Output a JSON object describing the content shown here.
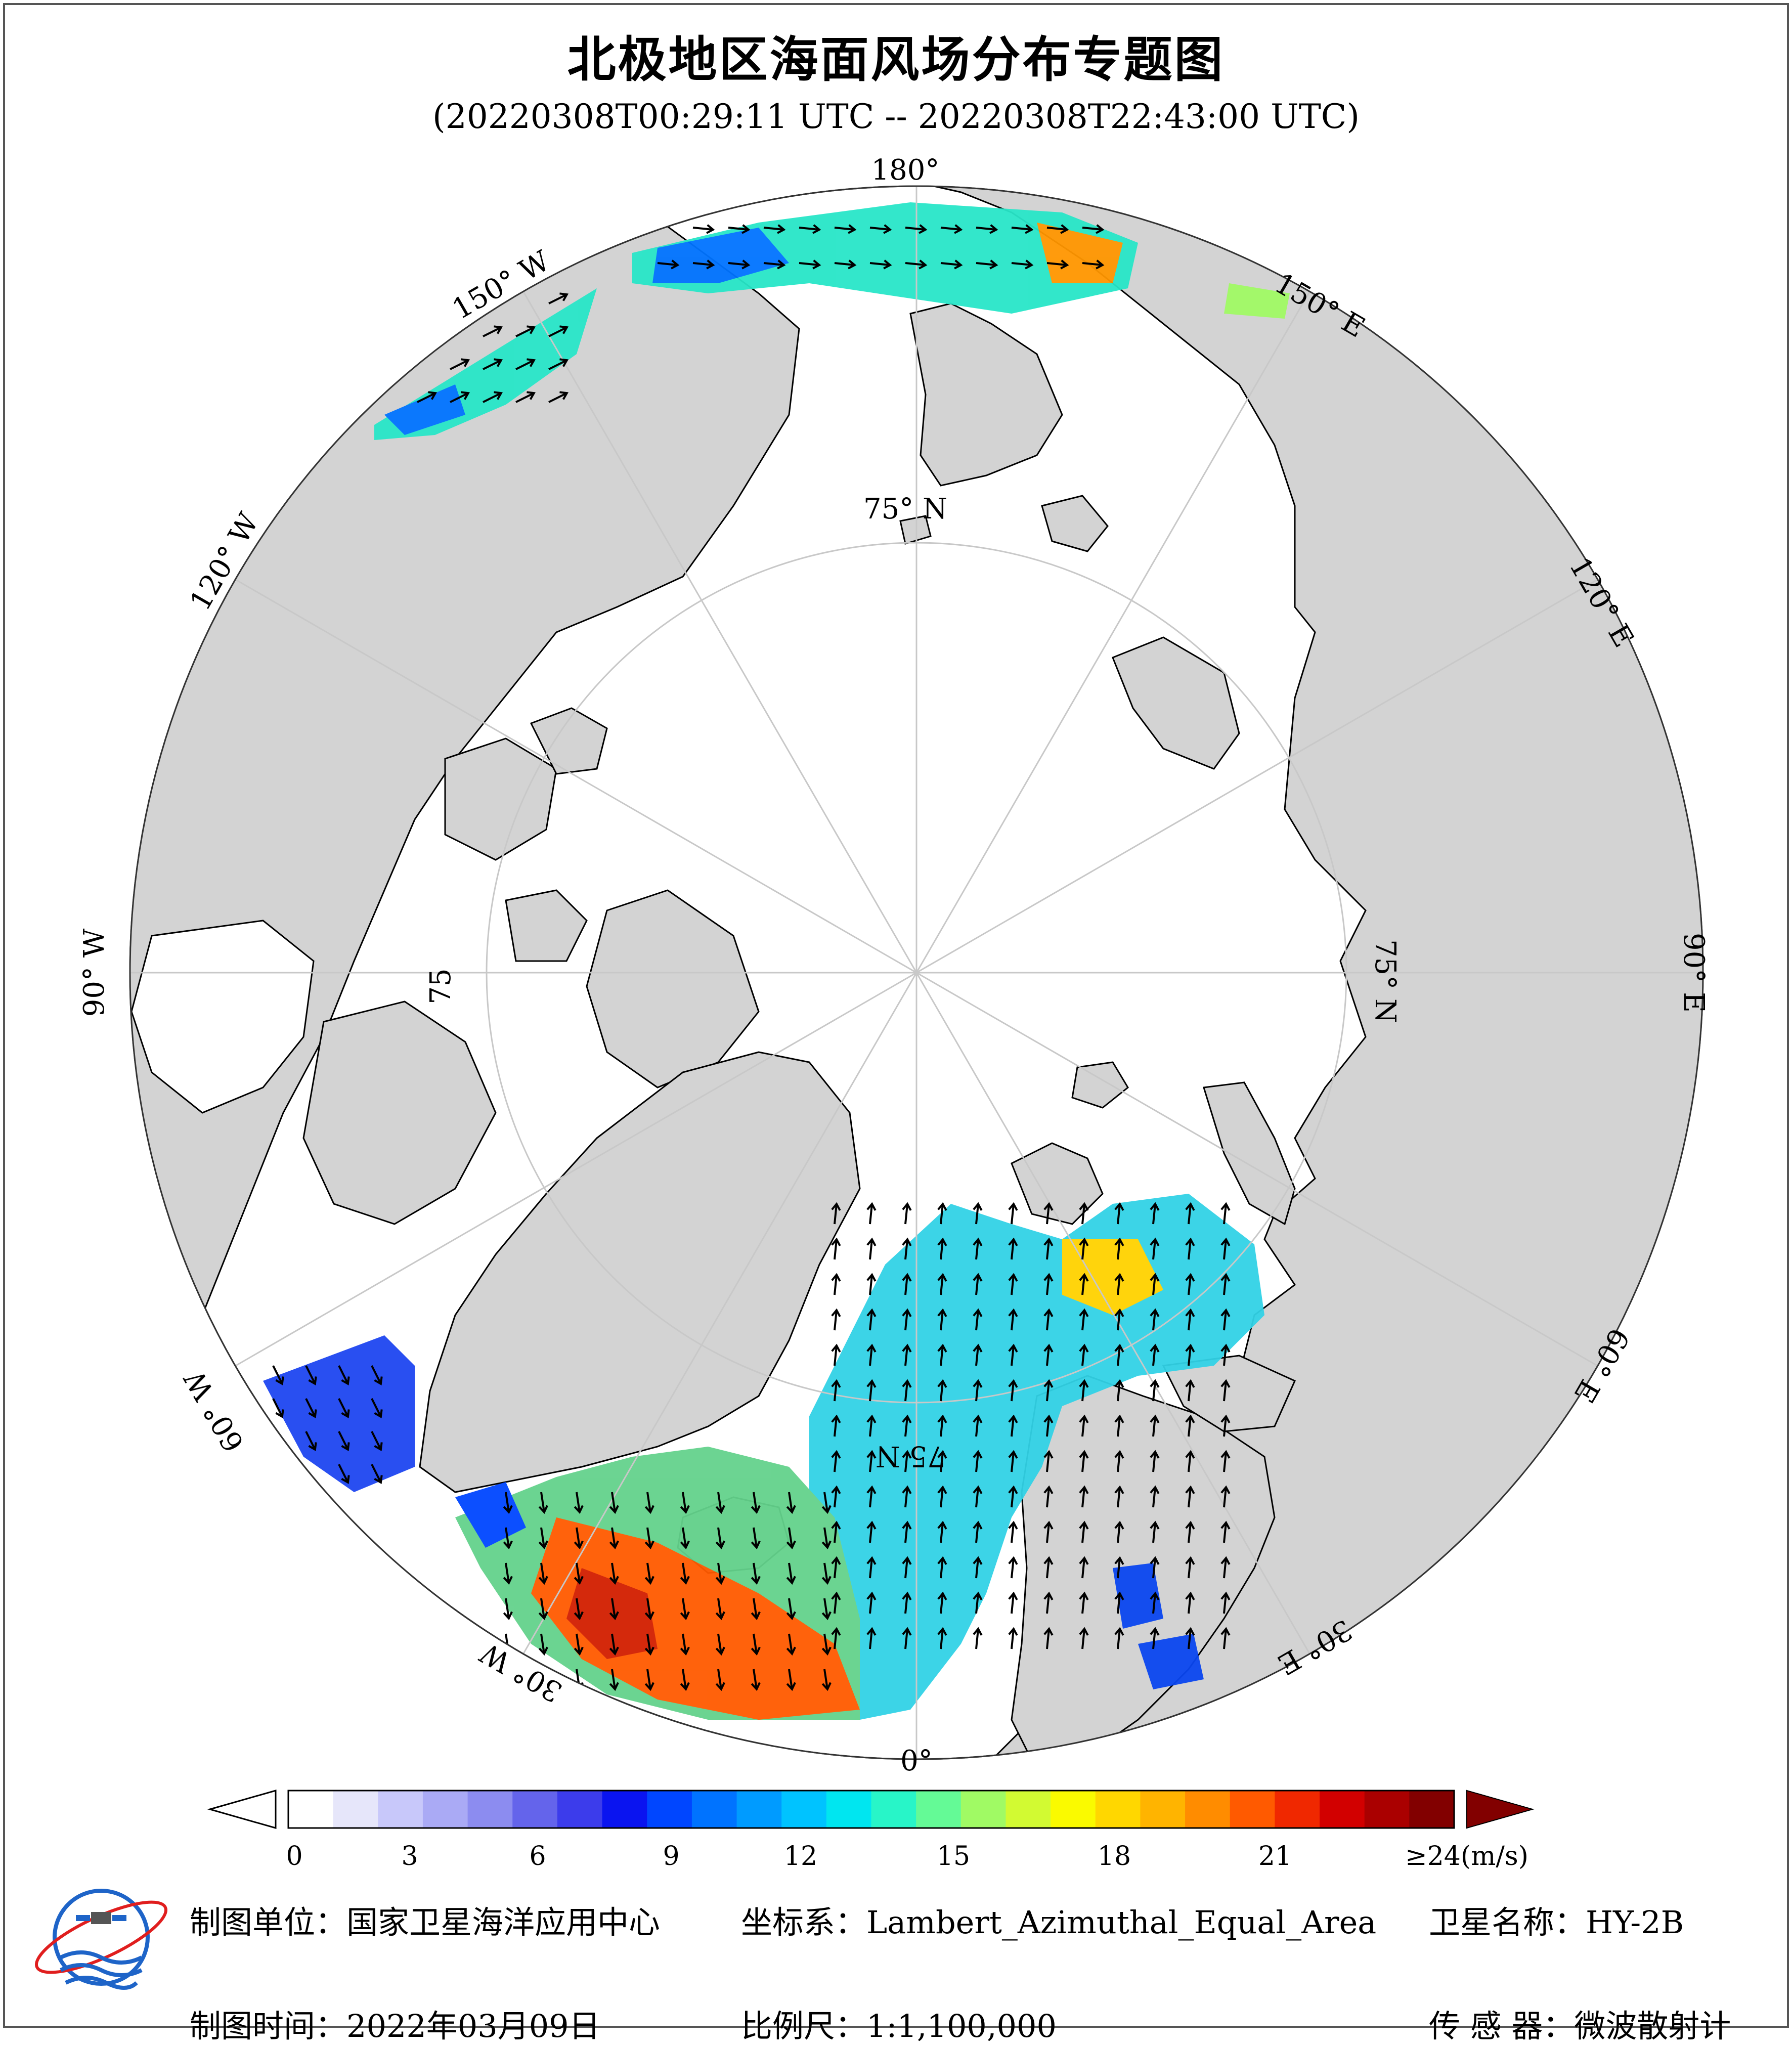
{
  "title": "北极地区海面风场分布专题图",
  "subtitle": "(20220308T00:29:11 UTC -- 20220308T22:43:00 UTC)",
  "graticule_labels": {
    "lon_180": "180°",
    "lon_150w": "150° W",
    "lon_150e": "150° E",
    "lon_120w": "120° W",
    "lon_120e": "120° E",
    "lon_90w": "90° W",
    "lon_90e": "90° E",
    "lon_60w": "60° W",
    "lon_60e": "60° E",
    "lon_30w": "30° W",
    "lon_30e": "30° E",
    "lon_0": "0°",
    "lat_75_top": "75° N",
    "lat_75_right": "75° N",
    "lat_75_left": "75",
    "lat_75_bottom": "75 N"
  },
  "colorbar": {
    "unit_label": "≥24(m/s)",
    "ticks": [
      "0",
      "3",
      "6",
      "9",
      "12",
      "15",
      "18",
      "21"
    ],
    "tick_values": [
      0,
      3,
      6,
      9,
      12,
      15,
      18,
      21
    ],
    "max_value": 24,
    "colors": [
      "#ffffff",
      "#e6e6fa",
      "#c8c8fa",
      "#aaaaf5",
      "#8c8cf0",
      "#6464eb",
      "#3c3ceb",
      "#0a14f0",
      "#0046ff",
      "#0073ff",
      "#009bff",
      "#00c3ff",
      "#00e6f0",
      "#28f5c8",
      "#64fa96",
      "#a0fa64",
      "#d2fa32",
      "#fafa00",
      "#ffd700",
      "#ffb400",
      "#ff8c00",
      "#ff5a00",
      "#f02800",
      "#d20000",
      "#aa0000",
      "#820000"
    ]
  },
  "info": {
    "org_label": "制图单位：",
    "org_value": "国家卫星海洋应用中心",
    "coord_label": "坐标系：",
    "coord_value": "Lambert_Azimuthal_Equal_Area",
    "sat_label": "卫星名称：",
    "sat_value": "HY-2B",
    "date_label": "制图时间：",
    "date_value": "2022年03月09日",
    "scale_label": "比例尺：",
    "scale_value": "1:1,100,000",
    "sensor_label": "传 感 器：",
    "sensor_value": "微波散射计"
  },
  "colors": {
    "land": "#d3d3d3",
    "ocean": "#ffffff",
    "coast": "#000000",
    "graticule": "#c8c8c8",
    "arrow": "#000000"
  }
}
